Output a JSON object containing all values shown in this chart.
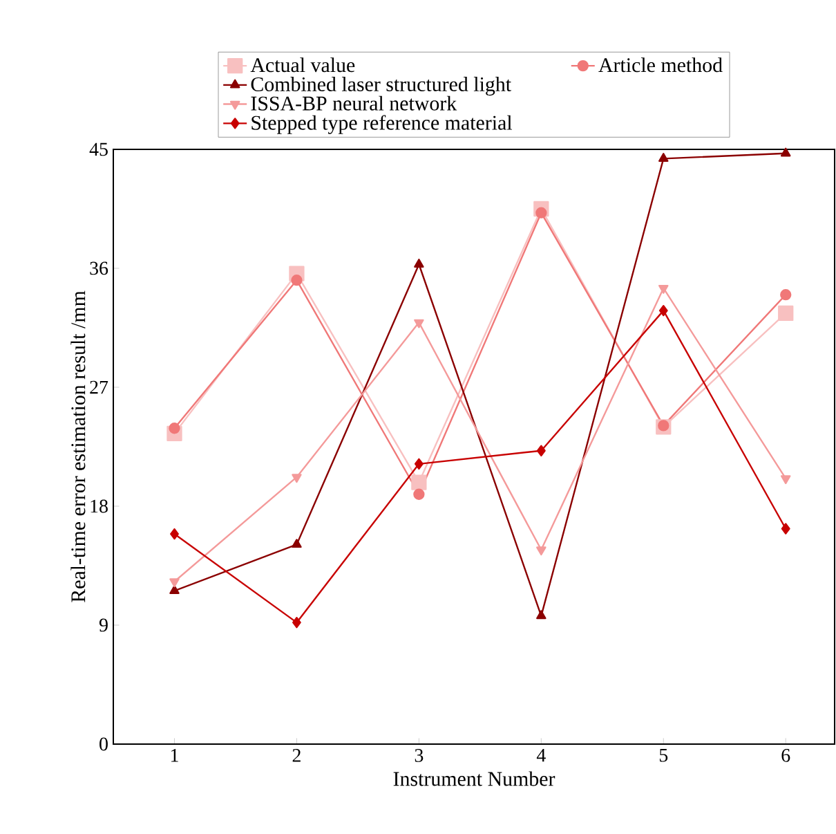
{
  "chart_data": {
    "type": "line",
    "xlabel": "Instrument Number",
    "ylabel": "Real-time error estimation result /mm",
    "x": [
      1,
      2,
      3,
      4,
      5,
      6
    ],
    "xlim": [
      0.5,
      6.4
    ],
    "xticks": [
      1,
      2,
      3,
      4,
      5,
      6
    ],
    "ylim": [
      0,
      45
    ],
    "yticks": [
      0,
      9,
      18,
      27,
      36,
      45
    ],
    "legend": "top",
    "line_style": "solid",
    "series": [
      {
        "name": "Actual value",
        "color": "#f8c0c0",
        "marker": "square",
        "values": [
          23.5,
          35.6,
          19.8,
          40.5,
          24,
          32.6
        ]
      },
      {
        "name": "Article method",
        "color": "#f07878",
        "marker": "circle",
        "values": [
          23.9,
          35.1,
          18.9,
          40.2,
          24.1,
          34.0
        ]
      },
      {
        "name": "Combined laser structured light",
        "color": "#8b0000",
        "marker": "triangle",
        "values": [
          11.6,
          15.1,
          36.3,
          9.7,
          44.3,
          44.7
        ]
      },
      {
        "name": "ISSA-BP neural network",
        "color": "#f49a9a",
        "marker": "triangle down",
        "values": [
          12.3,
          20.2,
          31.9,
          14.7,
          34.5,
          20.1
        ]
      },
      {
        "name": "Stepped type reference material",
        "color": "#c80000",
        "marker": "diamond",
        "values": [
          15.9,
          9.2,
          21.2,
          22.2,
          32.8,
          16.3
        ]
      }
    ]
  }
}
